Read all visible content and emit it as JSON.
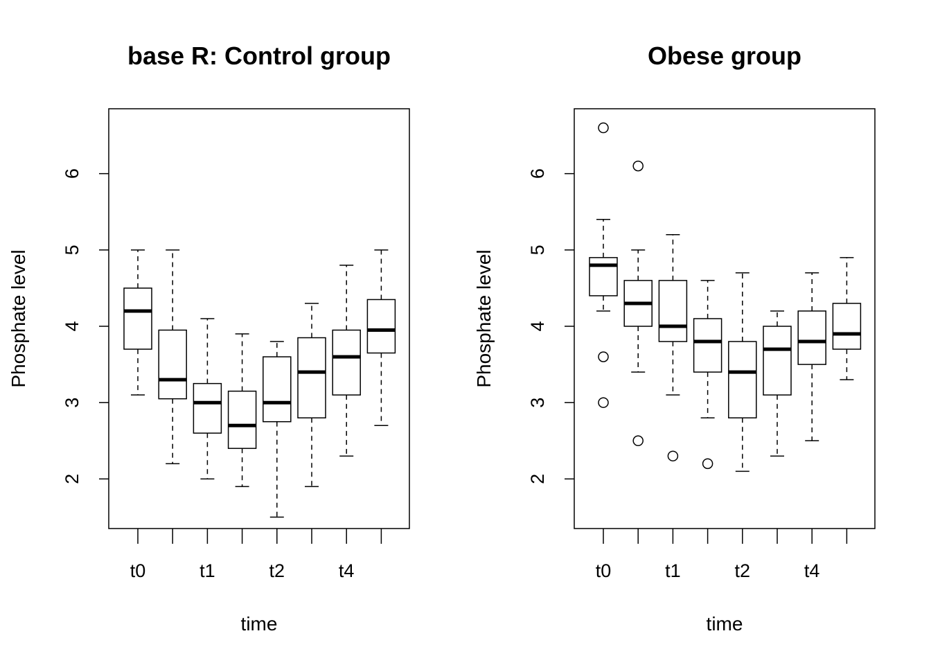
{
  "chart_data": [
    {
      "type": "boxplot",
      "title": "base R: Control group",
      "xlabel": "time",
      "ylabel": "Phosphate level",
      "ylim": [
        1.35,
        6.85
      ],
      "yticks": [
        2,
        3,
        4,
        5,
        6
      ],
      "categories": [
        "t0",
        "",
        "t1",
        "",
        "t2",
        "",
        "t4",
        ""
      ],
      "grid": false,
      "boxes": [
        {
          "whisker_low": 3.1,
          "q1": 3.7,
          "median": 4.2,
          "q3": 4.5,
          "whisker_high": 5.0,
          "outliers": []
        },
        {
          "whisker_low": 2.2,
          "q1": 3.05,
          "median": 3.3,
          "q3": 3.95,
          "whisker_high": 5.0,
          "outliers": []
        },
        {
          "whisker_low": 2.0,
          "q1": 2.6,
          "median": 3.0,
          "q3": 3.25,
          "whisker_high": 4.1,
          "outliers": []
        },
        {
          "whisker_low": 1.9,
          "q1": 2.4,
          "median": 2.7,
          "q3": 3.15,
          "whisker_high": 3.9,
          "outliers": []
        },
        {
          "whisker_low": 1.5,
          "q1": 2.75,
          "median": 3.0,
          "q3": 3.6,
          "whisker_high": 3.8,
          "outliers": []
        },
        {
          "whisker_low": 1.9,
          "q1": 2.8,
          "median": 3.4,
          "q3": 3.85,
          "whisker_high": 4.3,
          "outliers": []
        },
        {
          "whisker_low": 2.3,
          "q1": 3.1,
          "median": 3.6,
          "q3": 3.95,
          "whisker_high": 4.8,
          "outliers": []
        },
        {
          "whisker_low": 2.7,
          "q1": 3.65,
          "median": 3.95,
          "q3": 4.35,
          "whisker_high": 5.0,
          "outliers": []
        }
      ]
    },
    {
      "type": "boxplot",
      "title": "Obese group",
      "xlabel": "time",
      "ylabel": "Phosphate level",
      "ylim": [
        1.35,
        6.85
      ],
      "yticks": [
        2,
        3,
        4,
        5,
        6
      ],
      "categories": [
        "t0",
        "",
        "t1",
        "",
        "t2",
        "",
        "t4",
        ""
      ],
      "grid": false,
      "boxes": [
        {
          "whisker_low": 4.2,
          "q1": 4.4,
          "median": 4.8,
          "q3": 4.9,
          "whisker_high": 5.4,
          "outliers": [
            6.6,
            3.6,
            3.0
          ]
        },
        {
          "whisker_low": 3.4,
          "q1": 4.0,
          "median": 4.3,
          "q3": 4.6,
          "whisker_high": 5.0,
          "outliers": [
            6.1,
            2.5
          ]
        },
        {
          "whisker_low": 3.1,
          "q1": 3.8,
          "median": 4.0,
          "q3": 4.6,
          "whisker_high": 5.2,
          "outliers": [
            2.3
          ]
        },
        {
          "whisker_low": 2.8,
          "q1": 3.4,
          "median": 3.8,
          "q3": 4.1,
          "whisker_high": 4.6,
          "outliers": [
            2.2
          ]
        },
        {
          "whisker_low": 2.1,
          "q1": 2.8,
          "median": 3.4,
          "q3": 3.8,
          "whisker_high": 4.7,
          "outliers": []
        },
        {
          "whisker_low": 2.3,
          "q1": 3.1,
          "median": 3.7,
          "q3": 4.0,
          "whisker_high": 4.2,
          "outliers": []
        },
        {
          "whisker_low": 2.5,
          "q1": 3.5,
          "median": 3.8,
          "q3": 4.2,
          "whisker_high": 4.7,
          "outliers": []
        },
        {
          "whisker_low": 3.3,
          "q1": 3.7,
          "median": 3.9,
          "q3": 4.3,
          "whisker_high": 4.9,
          "outliers": []
        }
      ]
    }
  ]
}
